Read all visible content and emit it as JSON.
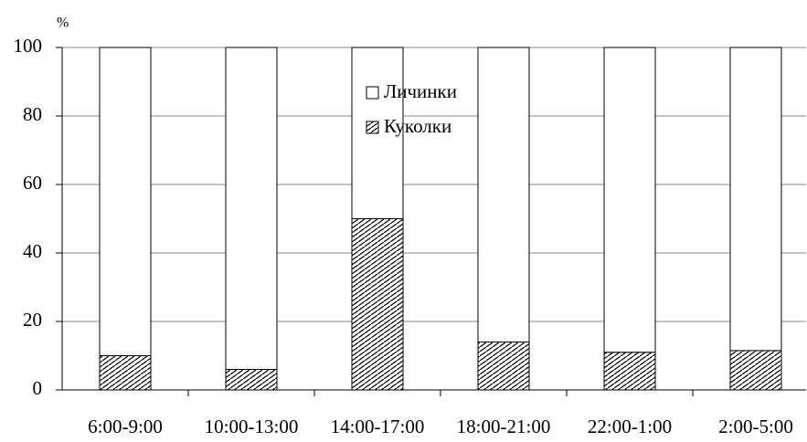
{
  "chart_data": {
    "type": "stacked_bar",
    "y_label": "%",
    "categories": [
      "6:00-9:00",
      "10:00-13:00",
      "14:00-17:00",
      "18:00-21:00",
      "22:00-1:00",
      "2:00-5:00"
    ],
    "series": [
      {
        "name": "Куколки",
        "color": "#ffffff",
        "pattern": "hatch",
        "values": [
          10,
          6,
          50,
          14,
          11,
          11.5
        ]
      },
      {
        "name": "Личинки",
        "color": "#ffffff",
        "values": [
          90,
          94,
          50,
          86,
          89,
          88.5
        ]
      }
    ],
    "ylim": [
      0,
      100
    ],
    "yticks": [
      0,
      20,
      40,
      60,
      80,
      100
    ],
    "grid": true
  }
}
